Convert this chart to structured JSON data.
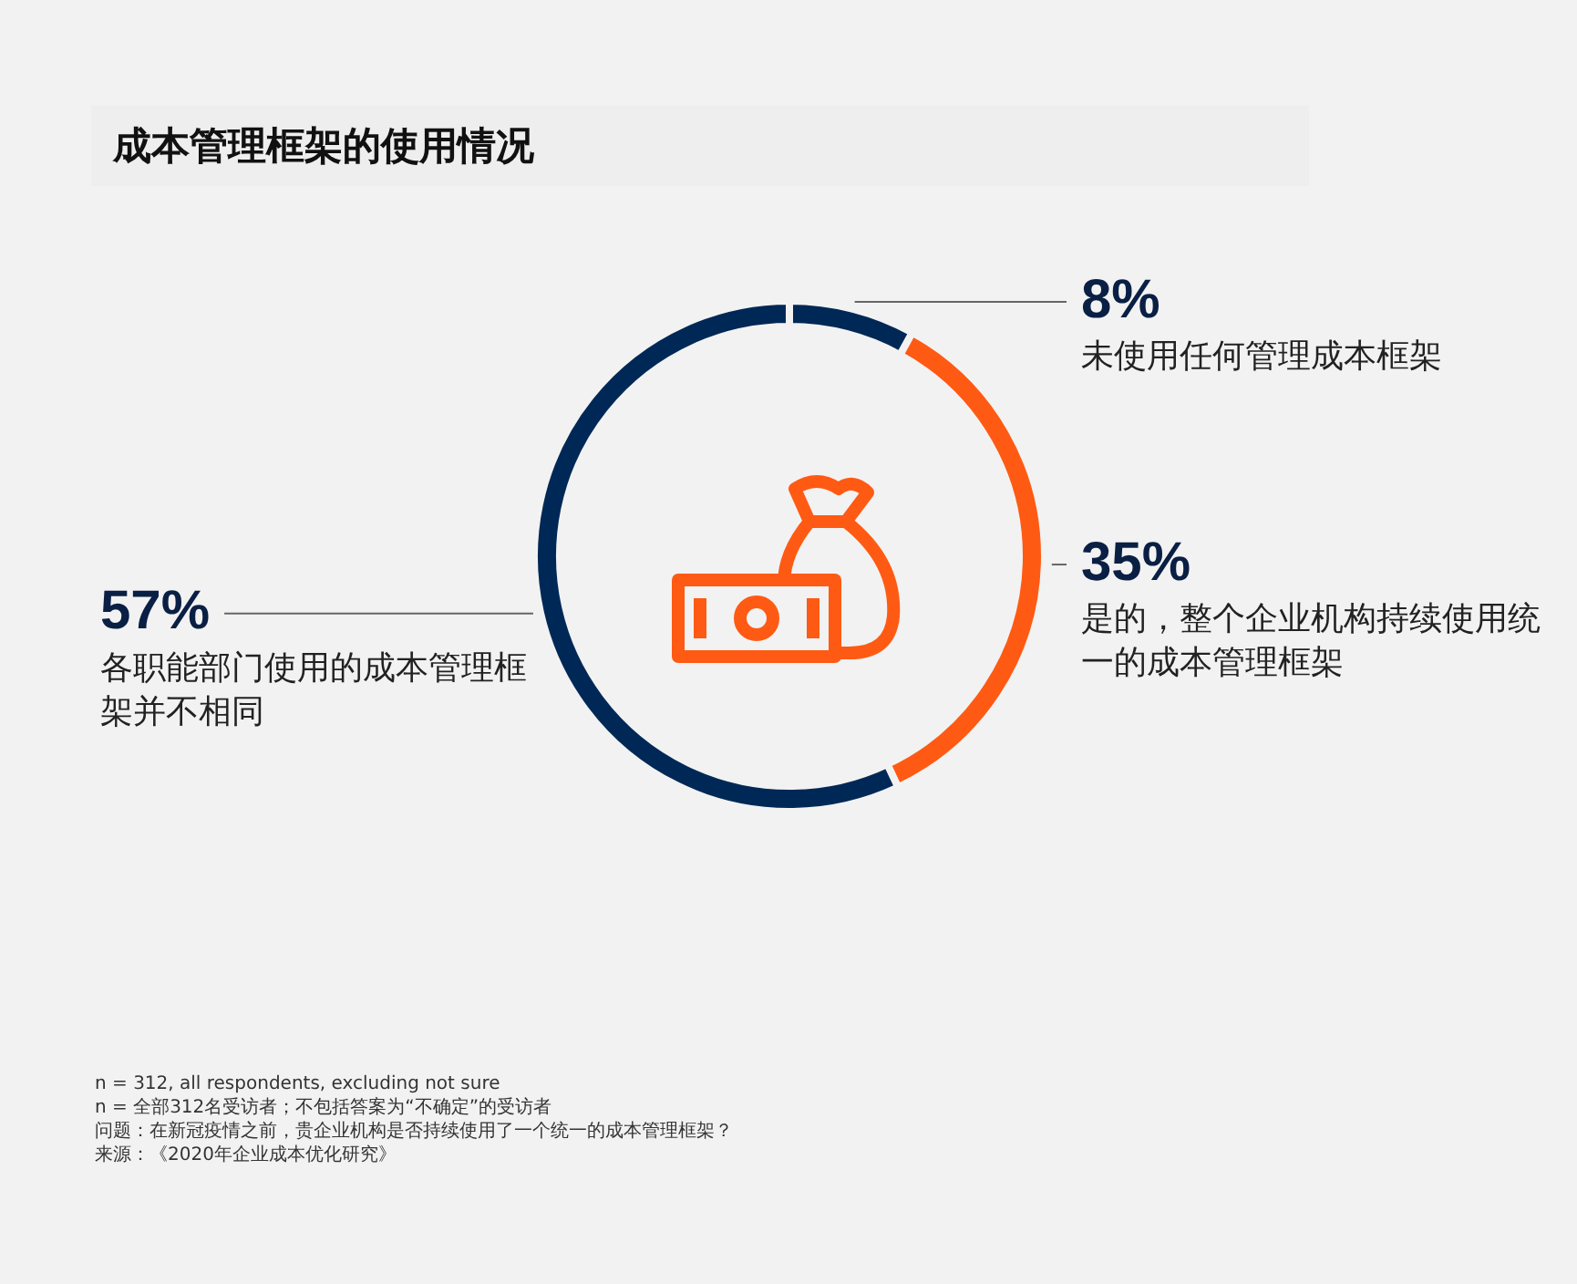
{
  "chart_data": {
    "type": "donut",
    "title": "成本管理框架的使用情况",
    "categories": [
      "未使用任何管理成本框架",
      "是的，整个企业机构持续使用统一的成本管理框架",
      "各职能部门使用的成本管理框架并不相同"
    ],
    "values": [
      8,
      35,
      57
    ],
    "colors": [
      "#002856",
      "#ff5a13",
      "#002856"
    ],
    "value_labels": [
      "8%",
      "35%",
      "57%"
    ],
    "legend": false,
    "annotations": [
      "n = 312, all respondents, excluding not sure",
      "n = 全部312名受访者；不包括答案为“不确定”的受访者",
      "问题：在新冠疫情之前，贵企业机构是否持续使用了一个统一的成本管理框架？",
      "来源：《2020年企业成本优化研究》"
    ]
  }
}
